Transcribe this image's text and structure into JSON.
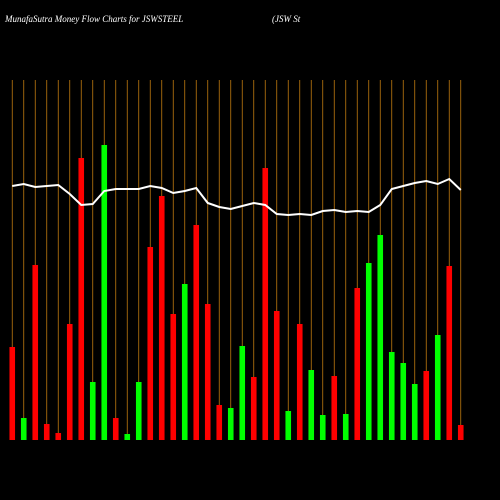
{
  "chart_data": {
    "type": "bar",
    "title": "MunafaSutra  Money Flow  Charts for JSWSTEEL",
    "subtitle": "(JSW St",
    "categories": [
      null,
      null,
      null,
      null,
      null,
      null,
      null,
      null,
      null,
      null,
      null,
      null,
      null,
      null,
      null,
      null,
      null,
      null,
      null,
      null,
      null,
      null,
      null,
      null,
      null,
      null,
      null,
      null,
      null,
      null,
      null,
      null,
      null,
      null,
      null,
      null,
      null,
      null,
      null,
      null
    ],
    "values": [
      93,
      22,
      175,
      16,
      7,
      116,
      282,
      58,
      295,
      22,
      6,
      58,
      193,
      244,
      126,
      156,
      215,
      136,
      35,
      32,
      94,
      63,
      272,
      129,
      29,
      116,
      70,
      25,
      64,
      26,
      152,
      177,
      205,
      88,
      77,
      56,
      69,
      105,
      174,
      15
    ],
    "colors": [
      "#ff0000",
      "#00ff00",
      "#ff0000",
      "#ff0000",
      "#ff0000",
      "#ff0000",
      "#ff0000",
      "#00ff00",
      "#00ff00",
      "#ff0000",
      "#00ff00",
      "#00ff00",
      "#ff0000",
      "#ff0000",
      "#ff0000",
      "#00ff00",
      "#ff0000",
      "#ff0000",
      "#ff0000",
      "#00ff00",
      "#00ff00",
      "#ff0000",
      "#ff0000",
      "#ff0000",
      "#00ff00",
      "#ff0000",
      "#00ff00",
      "#00ff00",
      "#ff0000",
      "#00ff00",
      "#ff0000",
      "#00ff00",
      "#00ff00",
      "#00ff00",
      "#00ff00",
      "#00ff00",
      "#ff0000",
      "#00ff00",
      "#ff0000",
      "#ff0000"
    ],
    "line_values": [
      254,
      256,
      253,
      254,
      255,
      246,
      235,
      236,
      249,
      251,
      251,
      251,
      254,
      252,
      247,
      249,
      252,
      237,
      233,
      231,
      234,
      237,
      235,
      226,
      225,
      226,
      225,
      229,
      230,
      228,
      229,
      228,
      235,
      251,
      254,
      257,
      259,
      256,
      261,
      250
    ],
    "line_color": "#ffffff",
    "gridline_color": "#c07a10"
  }
}
